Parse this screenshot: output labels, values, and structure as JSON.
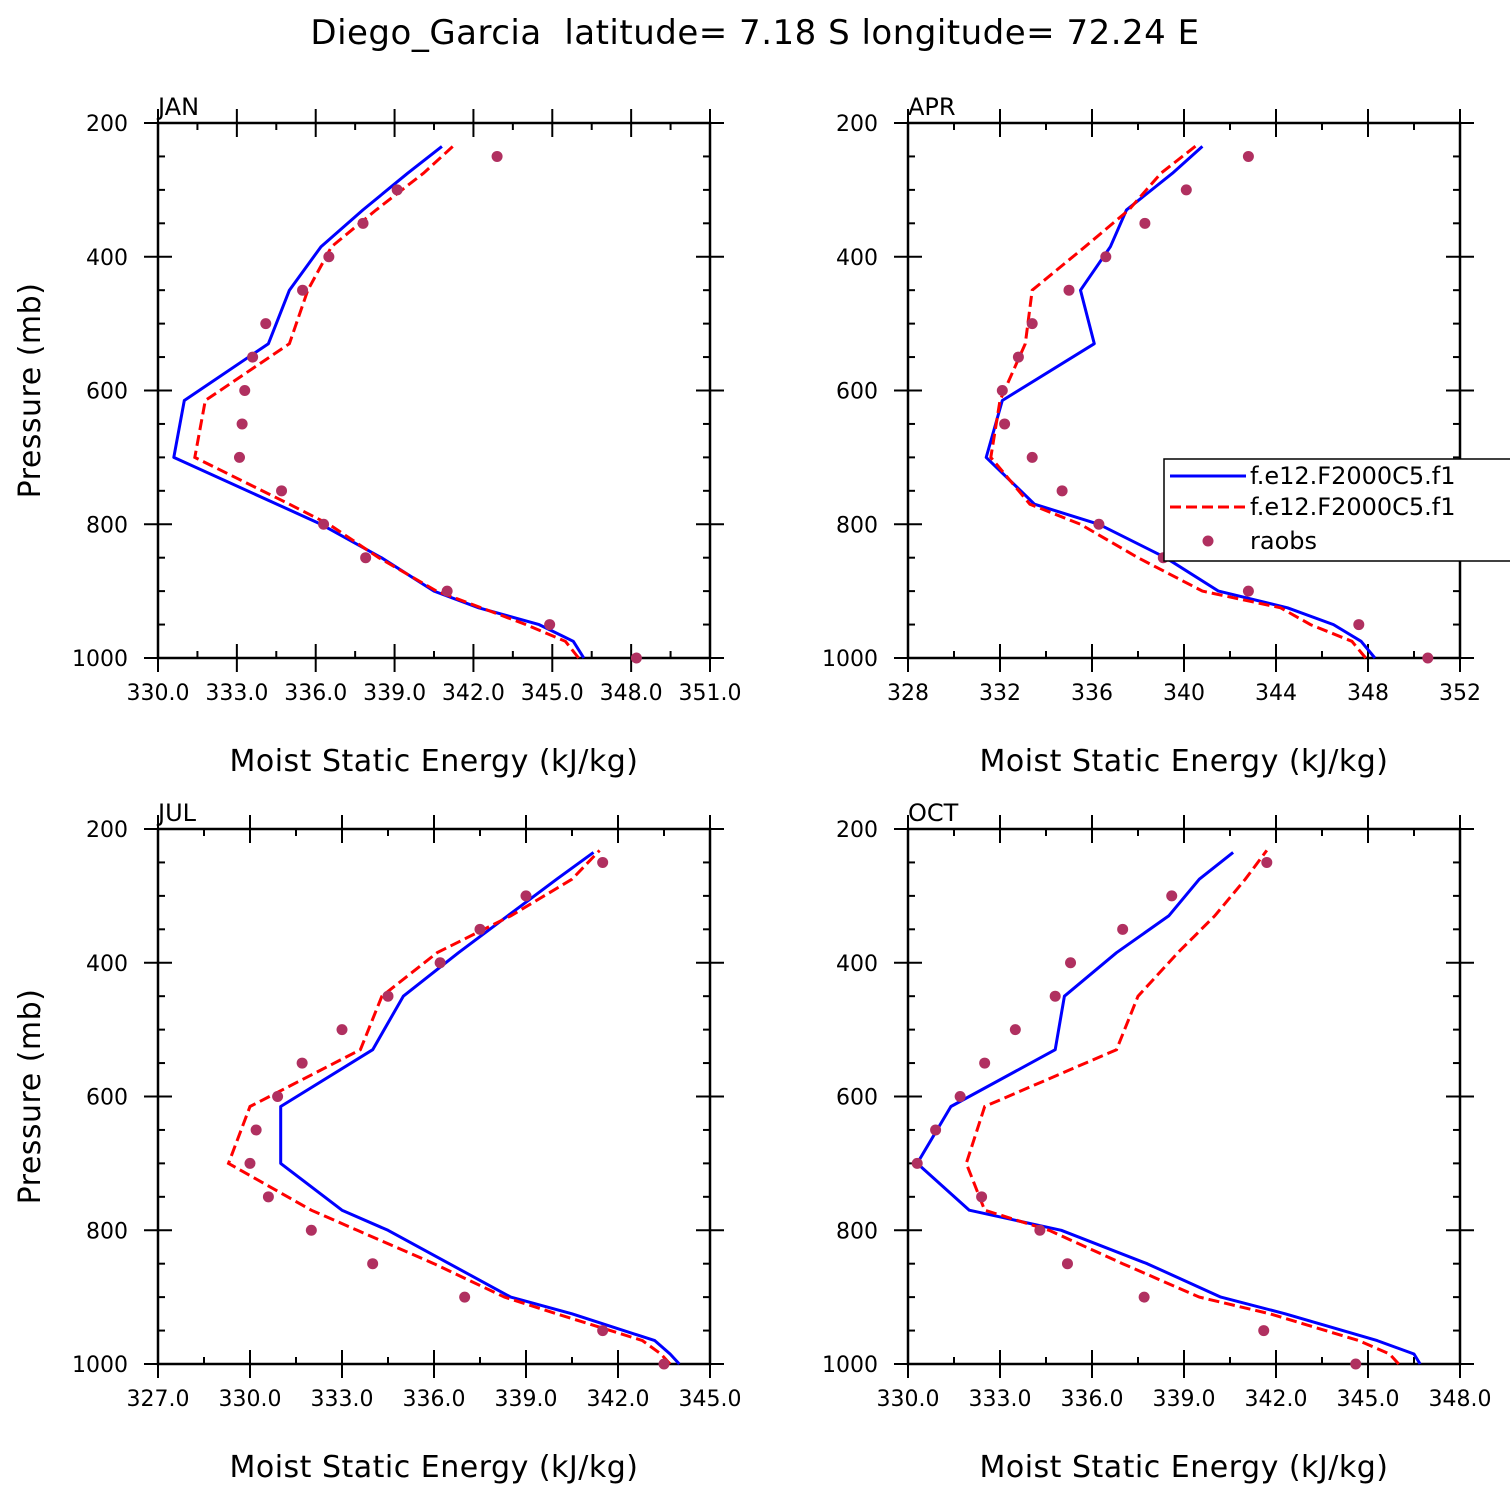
{
  "title": "Diego_Garcia  latitude= 7.18 S longitude= 72.24 E",
  "colors": {
    "model1": "#0000ff",
    "model2": "#ff0000",
    "raobs": "#b03060",
    "axis": "#000000"
  },
  "legend": {
    "placement": "right-middle of APR panel",
    "entries": [
      {
        "label": "f.e12.F2000C5.f1",
        "style": "solid-line",
        "color": "#0000ff"
      },
      {
        "label": "f.e12.F2000C5.f1",
        "style": "dashed-line",
        "color": "#ff0000"
      },
      {
        "label": "raobs",
        "style": "marker",
        "color": "#b03060"
      }
    ]
  },
  "chart_data": [
    {
      "type": "line",
      "month": "JAN",
      "xlabel": "Moist Static Energy (kJ/kg)",
      "ylabel": "Pressure (mb)",
      "xlim": [
        330.0,
        351.0
      ],
      "ylim": [
        1000,
        200
      ],
      "xticks": [
        330.0,
        333.0,
        336.0,
        339.0,
        342.0,
        345.0,
        348.0,
        351.0
      ],
      "xtick_labels": [
        "330.0",
        "333.0",
        "336.0",
        "339.0",
        "342.0",
        "345.0",
        "348.0",
        "351.0"
      ],
      "yticks": [
        200,
        400,
        600,
        800,
        1000
      ],
      "ytick_labels": [
        "200",
        "400",
        "600",
        "800",
        "1000"
      ],
      "series": [
        {
          "name": "f.e12.F2000C5.f1 (solid)",
          "pressure": [
            1000,
            975,
            950,
            925,
            900,
            850,
            800,
            775,
            700,
            615,
            530,
            450,
            385,
            330,
            275,
            235
          ],
          "values": [
            346.2,
            345.8,
            344.5,
            342.2,
            340.5,
            338.5,
            336.2,
            334.8,
            330.6,
            331.0,
            334.2,
            335.0,
            336.2,
            337.8,
            339.5,
            340.8
          ]
        },
        {
          "name": "f.e12.F2000C5.f1 (dashed)",
          "pressure": [
            1000,
            975,
            950,
            925,
            900,
            850,
            800,
            770,
            700,
            615,
            530,
            450,
            385,
            330,
            275,
            232
          ],
          "values": [
            346.0,
            345.5,
            344.0,
            342.3,
            340.6,
            338.4,
            336.5,
            335.0,
            331.4,
            331.8,
            335.0,
            335.7,
            336.6,
            338.3,
            340.1,
            341.3
          ]
        },
        {
          "name": "raobs",
          "pressure": [
            1000,
            950,
            900,
            850,
            800,
            750,
            700,
            650,
            600,
            550,
            500,
            450,
            400,
            350,
            300,
            250
          ],
          "values": [
            348.2,
            344.9,
            341.0,
            337.9,
            336.3,
            334.7,
            333.1,
            333.2,
            333.3,
            333.6,
            334.1,
            335.5,
            336.5,
            337.8,
            339.1,
            342.9
          ]
        }
      ]
    },
    {
      "type": "line",
      "month": "APR",
      "xlabel": "Moist Static Energy (kJ/kg)",
      "ylabel": "",
      "xlim": [
        328,
        352
      ],
      "ylim": [
        1000,
        200
      ],
      "xticks": [
        328,
        332,
        336,
        340,
        344,
        348,
        352
      ],
      "xtick_labels": [
        "328",
        "332",
        "336",
        "340",
        "344",
        "348",
        "352"
      ],
      "yticks": [
        200,
        400,
        600,
        800,
        1000
      ],
      "ytick_labels": [
        "200",
        "400",
        "600",
        "800",
        "1000"
      ],
      "series": [
        {
          "name": "f.e12.F2000C5.f1 (solid)",
          "pressure": [
            1000,
            975,
            950,
            925,
            900,
            850,
            800,
            770,
            700,
            615,
            530,
            450,
            385,
            330,
            275,
            235
          ],
          "values": [
            348.3,
            347.7,
            346.5,
            344.5,
            341.5,
            339.2,
            336.3,
            333.5,
            331.4,
            332.1,
            336.1,
            335.5,
            336.8,
            337.5,
            339.5,
            340.8
          ]
        },
        {
          "name": "f.e12.F2000C5.f1 (dashed)",
          "pressure": [
            1000,
            975,
            950,
            925,
            900,
            850,
            800,
            770,
            700,
            615,
            530,
            450,
            385,
            330,
            275,
            232
          ],
          "values": [
            347.9,
            347.3,
            345.5,
            344.2,
            340.8,
            338.0,
            335.5,
            333.3,
            331.6,
            332.0,
            333.1,
            333.4,
            335.7,
            337.6,
            339.0,
            340.6
          ]
        },
        {
          "name": "raobs",
          "pressure": [
            1000,
            950,
            900,
            850,
            800,
            750,
            700,
            650,
            600,
            550,
            500,
            450,
            400,
            350,
            300,
            250
          ],
          "values": [
            350.6,
            347.6,
            342.8,
            339.1,
            336.3,
            334.7,
            333.4,
            332.2,
            332.1,
            332.8,
            333.4,
            335.0,
            336.6,
            338.3,
            340.1,
            342.8
          ]
        }
      ]
    },
    {
      "type": "line",
      "month": "JUL",
      "xlabel": "Moist Static Energy (kJ/kg)",
      "ylabel": "Pressure (mb)",
      "xlim": [
        327.0,
        345.0
      ],
      "ylim": [
        1000,
        200
      ],
      "xticks": [
        327.0,
        330.0,
        333.0,
        336.0,
        339.0,
        342.0,
        345.0
      ],
      "xtick_labels": [
        "327.0",
        "330.0",
        "333.0",
        "336.0",
        "339.0",
        "342.0",
        "345.0"
      ],
      "yticks": [
        200,
        400,
        600,
        800,
        1000
      ],
      "ytick_labels": [
        "200",
        "400",
        "600",
        "800",
        "1000"
      ],
      "series": [
        {
          "name": "f.e12.F2000C5.f1 (solid)",
          "pressure": [
            1000,
            985,
            965,
            925,
            900,
            850,
            800,
            770,
            700,
            615,
            530,
            450,
            385,
            330,
            275,
            235
          ],
          "values": [
            344.0,
            343.7,
            343.2,
            340.5,
            338.5,
            336.5,
            334.5,
            333.0,
            331.0,
            331.0,
            334.0,
            335.0,
            336.8,
            338.4,
            340.0,
            341.2
          ]
        },
        {
          "name": "f.e12.F2000C5.f1 (dashed)",
          "pressure": [
            1000,
            985,
            965,
            925,
            900,
            850,
            800,
            770,
            700,
            615,
            530,
            450,
            385,
            330,
            275,
            232
          ],
          "values": [
            343.7,
            343.4,
            342.8,
            340.0,
            338.3,
            336.0,
            333.5,
            332.0,
            329.3,
            330.0,
            333.6,
            334.3,
            336.1,
            338.5,
            340.5,
            341.4
          ]
        },
        {
          "name": "raobs",
          "pressure": [
            1000,
            950,
            900,
            850,
            800,
            750,
            700,
            650,
            600,
            550,
            500,
            450,
            400,
            350,
            300,
            250
          ],
          "values": [
            343.5,
            341.5,
            337.0,
            334.0,
            332.0,
            330.6,
            330.0,
            330.2,
            330.9,
            331.7,
            333.0,
            334.5,
            336.2,
            337.5,
            339.0,
            341.5
          ]
        }
      ]
    },
    {
      "type": "line",
      "month": "OCT",
      "xlabel": "Moist Static Energy (kJ/kg)",
      "ylabel": "",
      "xlim": [
        330.0,
        348.0
      ],
      "ylim": [
        1000,
        200
      ],
      "xticks": [
        330.0,
        333.0,
        336.0,
        339.0,
        342.0,
        345.0,
        348.0
      ],
      "xtick_labels": [
        "330.0",
        "333.0",
        "336.0",
        "339.0",
        "342.0",
        "345.0",
        "348.0"
      ],
      "yticks": [
        200,
        400,
        600,
        800,
        1000
      ],
      "ytick_labels": [
        "200",
        "400",
        "600",
        "800",
        "1000"
      ],
      "series": [
        {
          "name": "f.e12.F2000C5.f1 (solid)",
          "pressure": [
            1000,
            985,
            965,
            925,
            900,
            850,
            800,
            770,
            700,
            615,
            530,
            450,
            385,
            330,
            275,
            235
          ],
          "values": [
            346.7,
            346.5,
            345.3,
            342.3,
            340.2,
            337.8,
            335.0,
            332.0,
            330.3,
            331.4,
            334.8,
            335.1,
            336.8,
            338.5,
            339.5,
            340.6
          ]
        },
        {
          "name": "f.e12.F2000C5.f1 (dashed)",
          "pressure": [
            1000,
            985,
            965,
            925,
            900,
            850,
            800,
            770,
            700,
            615,
            530,
            450,
            385,
            330,
            275,
            232
          ],
          "values": [
            346.0,
            345.7,
            344.7,
            341.8,
            339.5,
            337.0,
            334.6,
            332.5,
            331.9,
            332.5,
            336.8,
            337.5,
            338.8,
            340.0,
            341.0,
            341.7
          ]
        },
        {
          "name": "raobs",
          "pressure": [
            1000,
            950,
            900,
            850,
            800,
            750,
            700,
            650,
            600,
            550,
            500,
            450,
            400,
            350,
            300,
            250
          ],
          "values": [
            344.6,
            341.6,
            337.7,
            335.2,
            334.3,
            332.4,
            330.3,
            330.9,
            331.7,
            332.5,
            333.5,
            334.8,
            335.3,
            337.0,
            338.6,
            341.7
          ]
        }
      ]
    }
  ]
}
